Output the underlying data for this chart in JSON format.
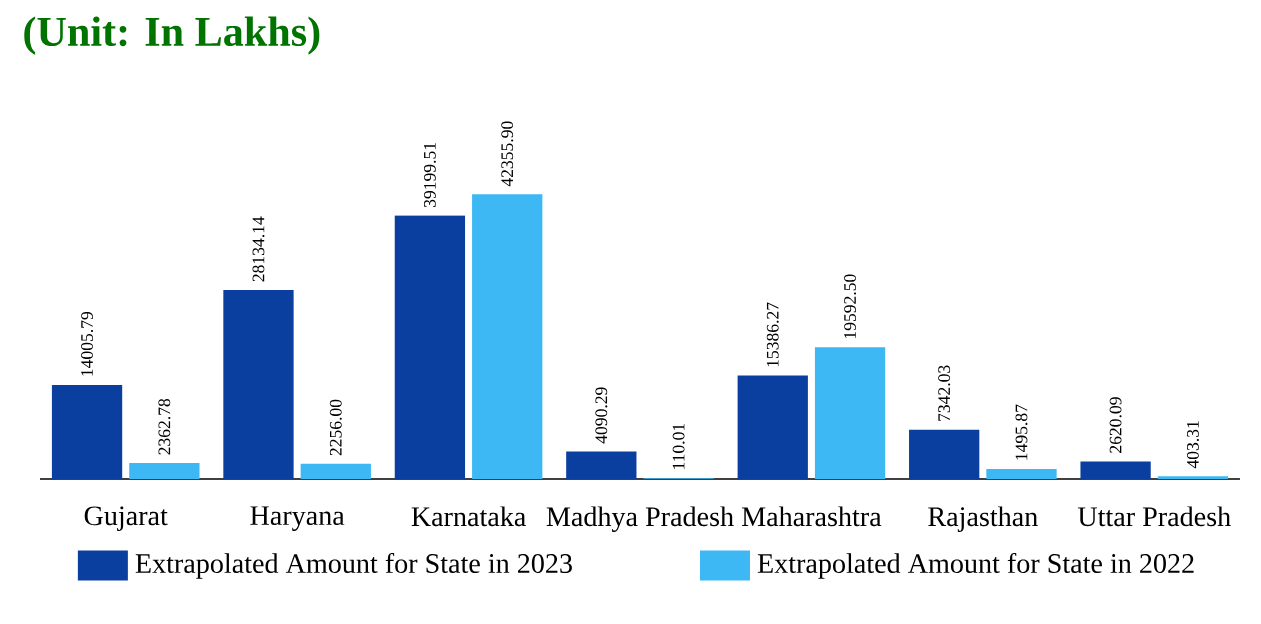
{
  "chart_data": {
    "type": "bar",
    "title": "(Unit: In Lakhs)",
    "categories": [
      "Gujarat",
      "Haryana",
      "Karnataka",
      "Madhya Pradesh",
      "Maharashtra",
      "Rajasthan",
      "Uttar Pradesh"
    ],
    "series": [
      {
        "name": "Extrapolated Amount for State in 2023",
        "color": "#0a3fa0",
        "values": [
          14005.79,
          28134.14,
          39199.51,
          4090.29,
          15386.27,
          7342.03,
          2620.09
        ],
        "value_labels": [
          "14005.79",
          "28134.14",
          "39199.51",
          "4090.29",
          "15386.27",
          "7342.03",
          "2620.09"
        ]
      },
      {
        "name": "Extrapolated Amount for State in 2022",
        "color": "#3db8f5",
        "values": [
          2362.78,
          2256.0,
          42355.9,
          110.01,
          19592.5,
          1495.87,
          403.31
        ],
        "value_labels": [
          "2362.78",
          "2256.00",
          "42355.90",
          "110.01",
          "19592.50",
          "1495.87",
          "403.31"
        ]
      }
    ],
    "legend": "bottom"
  }
}
